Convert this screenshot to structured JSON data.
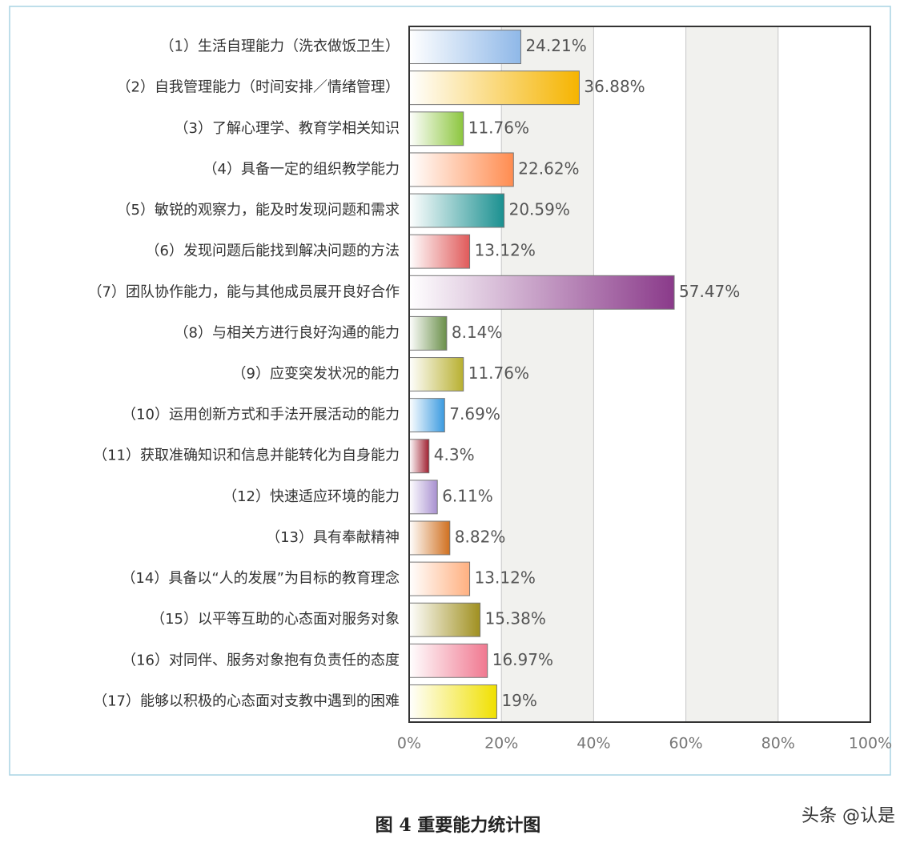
{
  "chart_data": {
    "type": "bar",
    "orientation": "horizontal",
    "categories": [
      "（1）生活自理能力（洗衣做饭卫生）",
      "（2）自我管理能力（时间安排／情绪管理）",
      "（3）了解心理学、教育学相关知识",
      "（4）具备一定的组织教学能力",
      "（5）敏锐的观察力，能及时发现问题和需求",
      "（6）发现问题后能找到解决问题的方法",
      "（7）团队协作能力，能与其他成员展开良好合作",
      "（8）与相关方进行良好沟通的能力",
      "（9）应变突发状况的能力",
      "（10）运用创新方式和手法开展活动的能力",
      "（11）获取准确知识和信息并能转化为自身能力",
      "（12）快速适应环境的能力",
      "（13）具有奉献精神",
      "（14）具备以“人的发展”为目标的教育理念",
      "（15）以平等互助的心态面对服务对象",
      "（16）对同伴、服务对象抱有负责任的态度",
      "（17）能够以积极的心态面对支教中遇到的困难"
    ],
    "values": [
      24.21,
      36.88,
      11.76,
      22.62,
      20.59,
      13.12,
      57.47,
      8.14,
      11.76,
      7.69,
      4.3,
      6.11,
      8.82,
      13.12,
      15.38,
      16.97,
      19
    ],
    "value_labels": [
      "24.21%",
      "36.88%",
      "11.76%",
      "22.62%",
      "20.59%",
      "13.12%",
      "57.47%",
      "8.14%",
      "11.76%",
      "7.69%",
      "4.3%",
      "6.11%",
      "8.82%",
      "13.12%",
      "15.38%",
      "16.97%",
      "19%"
    ],
    "colors": [
      "#8fb8e8",
      "#f5b400",
      "#8cc63e",
      "#ff8c50",
      "#1a9090",
      "#e05a5a",
      "#8a3a8a",
      "#6a8f4a",
      "#b8b030",
      "#3a9ae0",
      "#a02030",
      "#a890d0",
      "#d07020",
      "#ffb080",
      "#a09020",
      "#f07890",
      "#f0e000"
    ],
    "xlim": [
      0,
      100
    ],
    "xticks": [
      {
        "value": 0,
        "label": "0%"
      },
      {
        "value": 20,
        "label": "20%"
      },
      {
        "value": 40,
        "label": "40%"
      },
      {
        "value": 60,
        "label": "60%"
      },
      {
        "value": 80,
        "label": "80%"
      },
      {
        "value": 100,
        "label": "100%"
      }
    ],
    "grid": true,
    "caption": "图 4 重要能力统计图",
    "watermark": "头条 @认是"
  }
}
